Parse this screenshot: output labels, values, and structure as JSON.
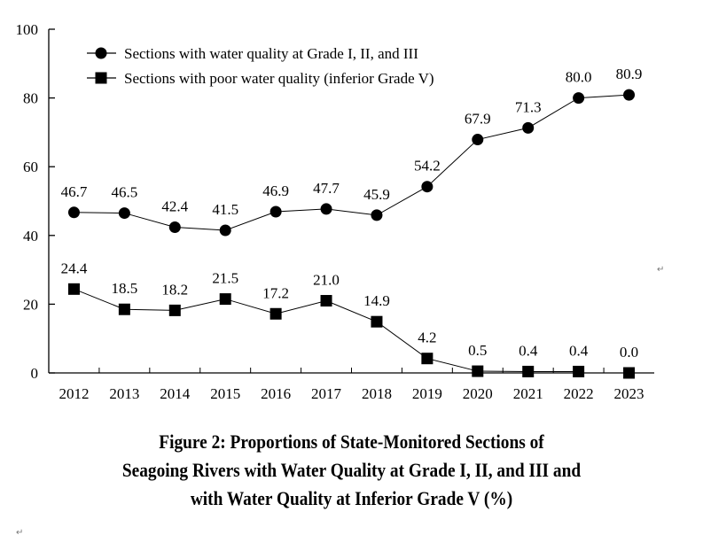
{
  "chart_data": {
    "type": "line",
    "title": "Figure 2: Proportions of State-Monitored Sections of Seagoing Rivers with Water Quality at Grade I, II, and III and with Water Quality at Inferior Grade V (%)",
    "title_lines": [
      "Figure 2: Proportions of State-Monitored Sections of",
      "Seagoing Rivers with Water Quality at Grade I, II, and III and",
      "with Water Quality at Inferior Grade V (%)"
    ],
    "xlabel": "",
    "ylabel": "",
    "categories": [
      "2012",
      "2013",
      "2014",
      "2015",
      "2016",
      "2017",
      "2018",
      "2019",
      "2020",
      "2021",
      "2022",
      "2023"
    ],
    "ylim": [
      0,
      100
    ],
    "yticks": [
      "0",
      "20",
      "40",
      "60",
      "80",
      "100"
    ],
    "grid": false,
    "legend_position": "top-left",
    "series": [
      {
        "name": "Sections with water quality at Grade I, II, and III",
        "marker": "circle",
        "values": [
          46.7,
          46.5,
          42.4,
          41.5,
          46.9,
          47.7,
          45.9,
          54.2,
          67.9,
          71.3,
          80.0,
          80.9
        ],
        "labels": [
          "46.7",
          "46.5",
          "42.4",
          "41.5",
          "46.9",
          "47.7",
          "45.9",
          "54.2",
          "67.9",
          "71.3",
          "80.0",
          "80.9"
        ]
      },
      {
        "name": "Sections with poor water quality (inferior Grade V)",
        "marker": "square",
        "values": [
          24.4,
          18.5,
          18.2,
          21.5,
          17.2,
          21.0,
          14.9,
          4.2,
          0.5,
          0.4,
          0.4,
          0.0
        ],
        "labels": [
          "24.4",
          "18.5",
          "18.2",
          "21.5",
          "17.2",
          "21.0",
          "14.9",
          "4.2",
          "0.5",
          "0.4",
          "0.4",
          "0.0"
        ]
      }
    ]
  },
  "paragraph_mark": "↵",
  "colors": {
    "ink": "#000000",
    "para_mark": "#777777"
  }
}
